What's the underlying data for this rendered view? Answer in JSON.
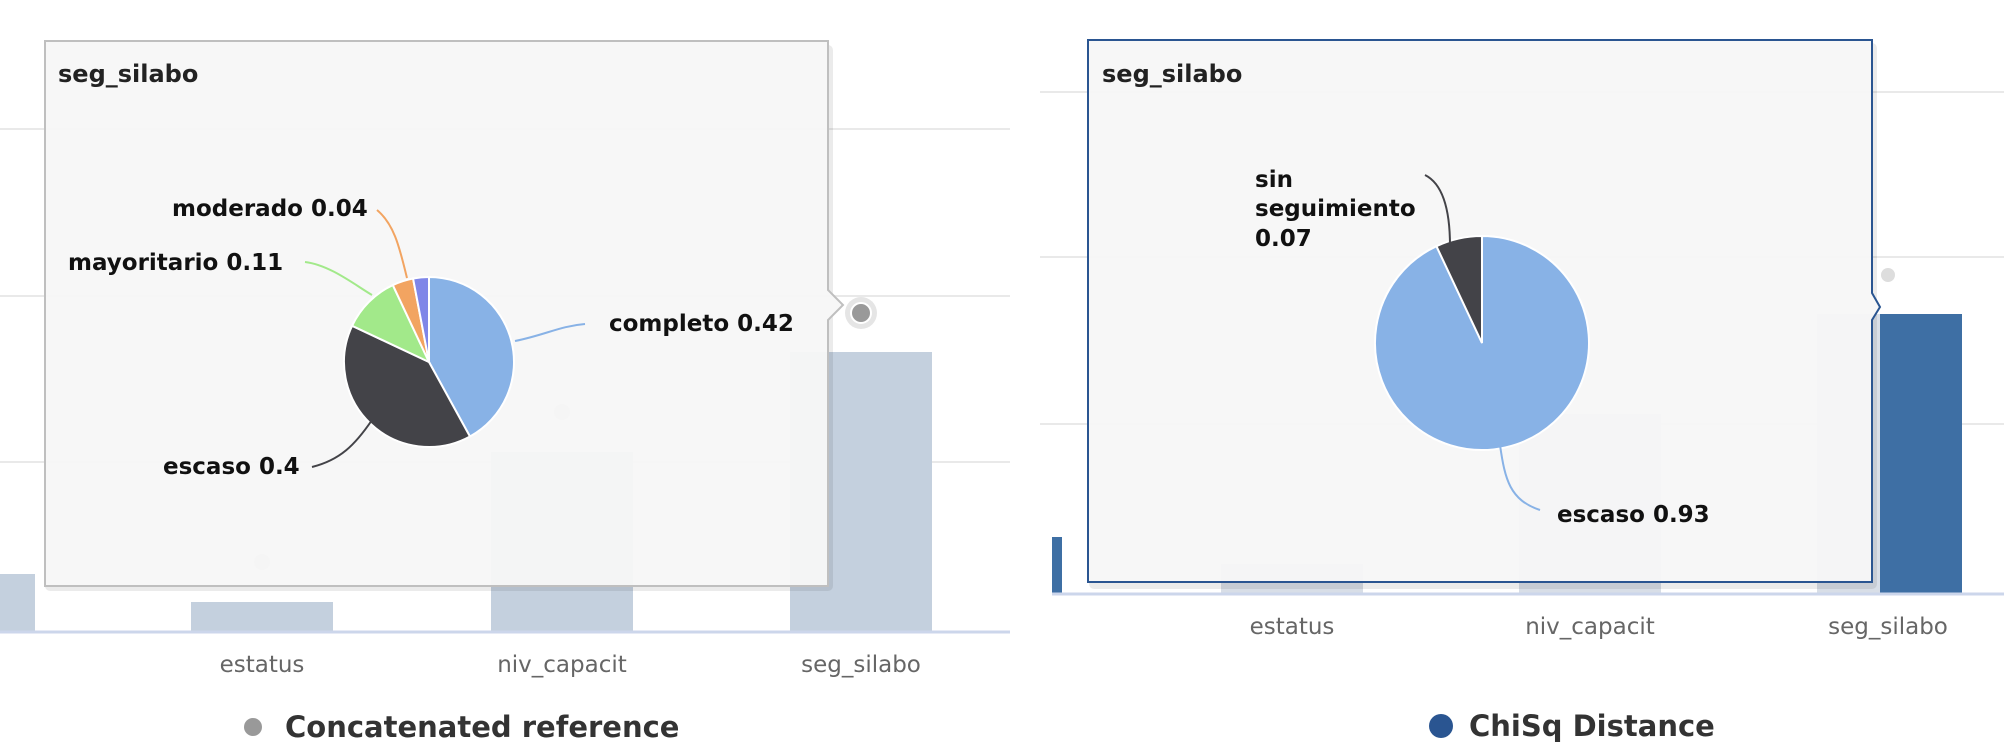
{
  "chart_data": [
    {
      "type": "bar",
      "categories": [
        "estatus",
        "niv_capacit",
        "seg_silabo"
      ],
      "series": [
        {
          "name": "Concatenated reference",
          "values": [
            0.06,
            0.36,
            0.56
          ]
        }
      ],
      "legend": {
        "position": "bottom",
        "label": "Concatenated reference",
        "color": "#999999"
      },
      "bar_color": "#c4d0de",
      "tooltip": {
        "title": "seg_silabo",
        "type": "pie",
        "slices": [
          {
            "label": "completo",
            "value": 0.42,
            "color": "#88b2e6"
          },
          {
            "label": "escaso",
            "value": 0.4,
            "color": "#434348"
          },
          {
            "label": "mayoritario",
            "value": 0.11,
            "color": "#a2e98a"
          },
          {
            "label": "moderado",
            "value": 0.04,
            "color": "#f2a461"
          },
          {
            "label": "",
            "value": 0.03,
            "color": "#7f86e8"
          }
        ]
      }
    },
    {
      "type": "bar",
      "categories": [
        "estatus",
        "niv_capacit",
        "seg_silabo"
      ],
      "series": [
        {
          "name": "ChiSq Distance",
          "values": [
            0.06,
            0.36,
            0.56
          ]
        }
      ],
      "legend": {
        "position": "bottom",
        "label": "ChiSq Distance",
        "color": "#2a5591"
      },
      "bar_color": "#3e6fa4",
      "tooltip": {
        "title": "seg_silabo",
        "type": "pie",
        "slices": [
          {
            "label": "escaso",
            "value": 0.93,
            "color": "#88b2e6"
          },
          {
            "label": "sin seguimiento",
            "value": 0.07,
            "color": "#434348"
          }
        ]
      }
    }
  ],
  "panels": [
    {
      "tooltip_title": "seg_silabo",
      "axis": [
        "estatus",
        "niv_capacit",
        "seg_silabo"
      ],
      "legend_label": "Concatenated reference",
      "pie_labels": [
        "completo 0.42",
        "escaso 0.4",
        "mayoritario 0.11",
        "moderado 0.04"
      ]
    },
    {
      "tooltip_title": "seg_silabo",
      "axis": [
        "estatus",
        "niv_capacit",
        "seg_silabo"
      ],
      "legend_label": "ChiSq Distance",
      "pie_labels": [
        "escaso 0.93"
      ],
      "pie_label_multiline": [
        "sin",
        "seguimiento",
        "0.07"
      ]
    }
  ]
}
